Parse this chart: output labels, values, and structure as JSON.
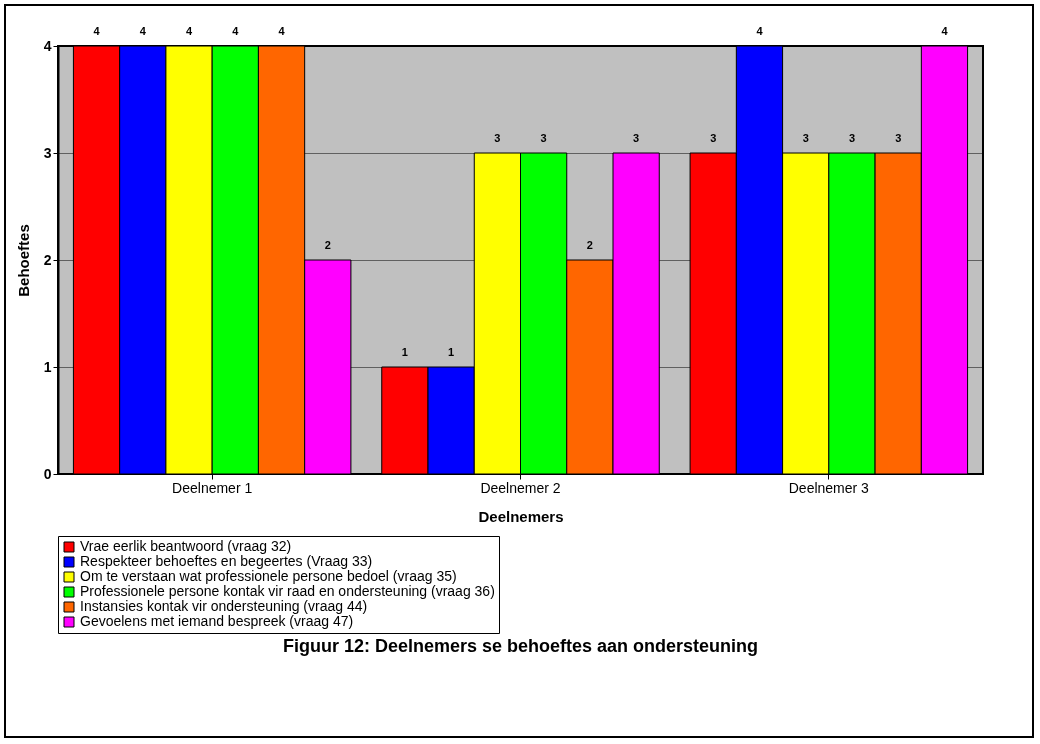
{
  "chart_data": {
    "type": "bar",
    "xlabel": "Deelnemers",
    "ylabel": "Behoeftes",
    "categories": [
      "Deelnemer 1",
      "Deelnemer 2",
      "Deelnemer 3"
    ],
    "series": [
      {
        "name": "Vrae eerlik beantwoord (vraag 32)",
        "color": "#ff0000",
        "values": [
          4,
          1,
          3
        ]
      },
      {
        "name": "Respekteer behoeftes en begeertes (Vraag 33)",
        "color": "#0000ff",
        "values": [
          4,
          1,
          4
        ]
      },
      {
        "name": "Om te verstaan wat professionele persone bedoel (vraag 35)",
        "color": "#ffff00",
        "values": [
          4,
          3,
          3
        ]
      },
      {
        "name": "Professionele persone kontak vir raad en ondersteuning (vraag 36)",
        "color": "#00ff00",
        "values": [
          4,
          3,
          3
        ]
      },
      {
        "name": "Instansies kontak vir ondersteuning (vraag 44)",
        "color": "#ff6600",
        "values": [
          4,
          2,
          3
        ]
      },
      {
        "name": "Gevoelens met iemand bespreek (vraag 47)",
        "color": "#ff00ff",
        "values": [
          2,
          3,
          4
        ]
      }
    ],
    "ylim": [
      0,
      4
    ],
    "yticks": [
      0,
      1,
      2,
      3,
      4
    ],
    "grid": "y",
    "legend": "bottom",
    "data_labels": true,
    "annotations": [
      "Figuur 12:  Deelnemers se behoeftes aan ondersteuning"
    ]
  }
}
